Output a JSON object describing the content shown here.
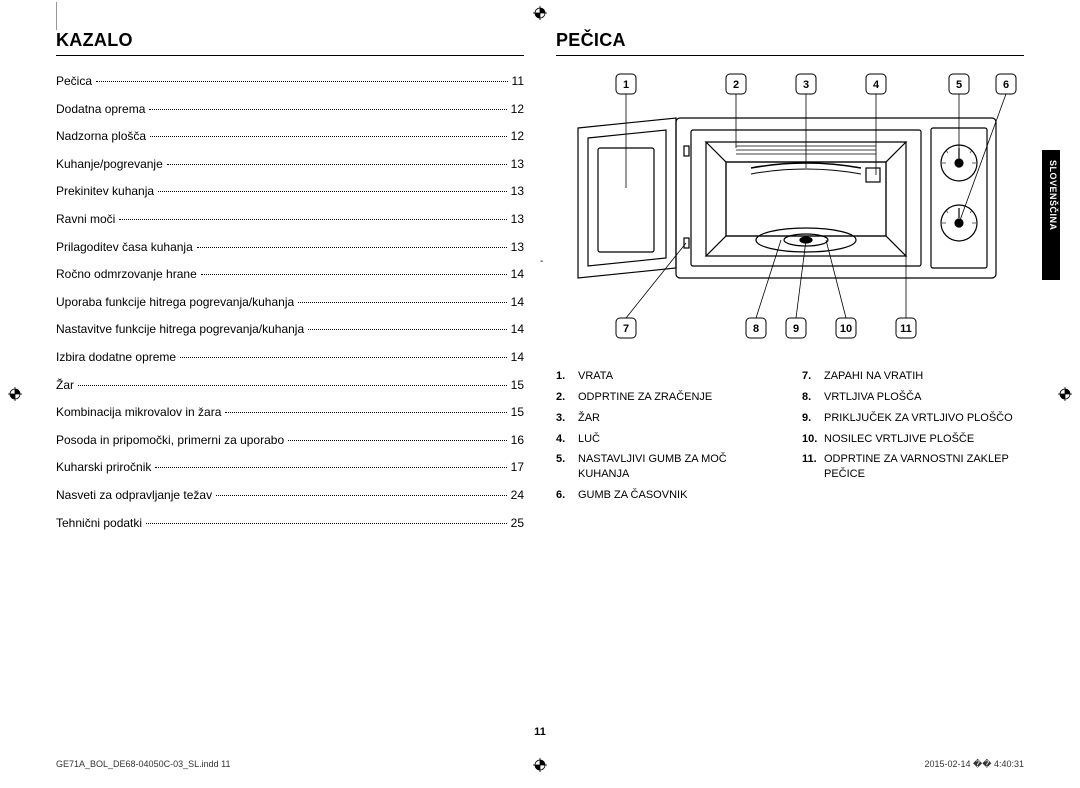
{
  "language_tab": "SLOVENŠČINA",
  "page_number": "11",
  "footer_left": "GE71A_BOL_DE68-04050C-03_SL.indd   11",
  "footer_right": "2015-02-14   �� 4:40:31",
  "left": {
    "heading": "Kazalo",
    "toc": [
      {
        "title": "Pečica",
        "page": "11"
      },
      {
        "title": "Dodatna oprema",
        "page": "12"
      },
      {
        "title": "Nadzorna plošča",
        "page": "12"
      },
      {
        "title": "Kuhanje/pogrevanje",
        "page": "13"
      },
      {
        "title": "Prekinitev kuhanja",
        "page": "13"
      },
      {
        "title": "Ravni moči",
        "page": "13"
      },
      {
        "title": "Prilagoditev časa kuhanja",
        "page": "13"
      },
      {
        "title": "Ročno odmrzovanje hrane",
        "page": "14"
      },
      {
        "title": "Uporaba funkcije hitrega pogrevanja/kuhanja",
        "page": "14"
      },
      {
        "title": "Nastavitve funkcije hitrega pogrevanja/kuhanja",
        "page": "14"
      },
      {
        "title": "Izbira dodatne opreme",
        "page": "14"
      },
      {
        "title": "Žar",
        "page": "15"
      },
      {
        "title": "Kombinacija mikrovalov in žara",
        "page": "15"
      },
      {
        "title": "Posoda in pripomočki, primerni za uporabo",
        "page": "16"
      },
      {
        "title": "Kuharski priročnik",
        "page": "17"
      },
      {
        "title": "Nasveti za odpravljanje težav",
        "page": "24"
      },
      {
        "title": "Tehnični podatki",
        "page": "25"
      }
    ]
  },
  "right": {
    "heading": "Pečica",
    "diagram": {
      "top_callouts": [
        1,
        2,
        3,
        4,
        5,
        6
      ],
      "bottom_callouts": [
        7,
        8,
        9,
        10,
        11
      ],
      "stroke_color": "#000000",
      "fill_color": "#ffffff",
      "label_font_size": 10
    },
    "legend_left": [
      {
        "n": "1.",
        "t": "VRATA"
      },
      {
        "n": "2.",
        "t": "ODPRTINE ZA ZRAČENJE"
      },
      {
        "n": "3.",
        "t": "ŽAR"
      },
      {
        "n": "4.",
        "t": "LUČ"
      },
      {
        "n": "5.",
        "t": "NASTAVLJIVI GUMB ZA MOČ KUHANJA"
      },
      {
        "n": "6.",
        "t": "GUMB ZA ČASOVNIK"
      }
    ],
    "legend_right": [
      {
        "n": "7.",
        "t": "ZAPAHI NA VRATIH"
      },
      {
        "n": "8.",
        "t": "VRTLJIVA PLOŠČA"
      },
      {
        "n": "9.",
        "t": "PRIKLJUČEK ZA VRTLJIVO PLOŠČO"
      },
      {
        "n": "10.",
        "t": "NOSILEC VRTLJIVE PLOŠČE"
      },
      {
        "n": "11.",
        "t": "ODPRTINE ZA VARNOSTNI ZAKLEP PEČICE"
      }
    ]
  }
}
